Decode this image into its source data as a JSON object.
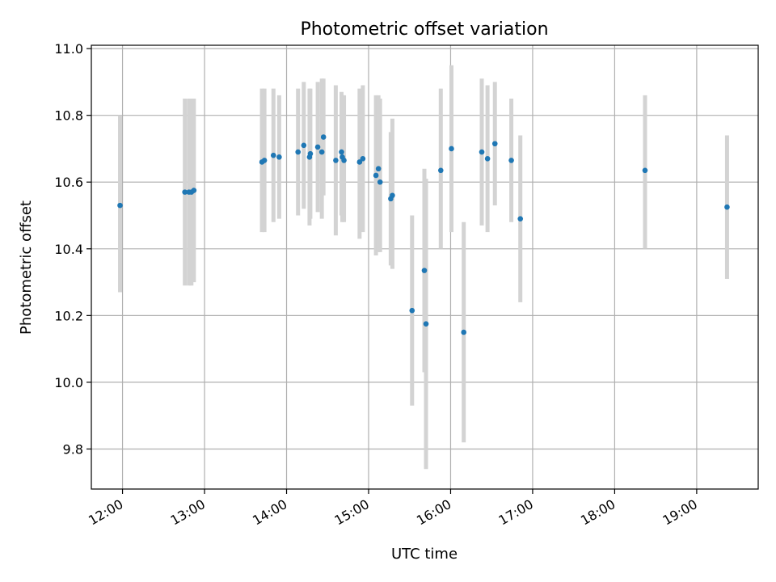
{
  "chart_data": {
    "type": "scatter",
    "title": "Photometric offset variation",
    "xlabel": "UTC time",
    "ylabel": "Photometric offset",
    "x_unit": "hours UTC",
    "xlim": [
      11.62,
      19.75
    ],
    "ylim": [
      9.68,
      11.01
    ],
    "x_ticks": [
      12,
      13,
      14,
      15,
      16,
      17,
      18,
      19
    ],
    "x_tick_labels": [
      "12:00",
      "13:00",
      "14:00",
      "15:00",
      "16:00",
      "17:00",
      "18:00",
      "19:00"
    ],
    "y_ticks": [
      9.8,
      10.0,
      10.2,
      10.4,
      10.6,
      10.8,
      11.0
    ],
    "y_tick_labels": [
      "9.8",
      "10.0",
      "10.2",
      "10.4",
      "10.6",
      "10.8",
      "11.0"
    ],
    "grid": true,
    "colors": {
      "point": "#1f77b4",
      "errorbar": "#d3d3d3"
    },
    "points": [
      {
        "x": 11.97,
        "y": 10.53,
        "ylo": 10.27,
        "yhi": 10.8
      },
      {
        "x": 12.76,
        "y": 10.57,
        "ylo": 10.29,
        "yhi": 10.85
      },
      {
        "x": 12.81,
        "y": 10.57,
        "ylo": 10.29,
        "yhi": 10.85
      },
      {
        "x": 12.84,
        "y": 10.57,
        "ylo": 10.29,
        "yhi": 10.85
      },
      {
        "x": 12.87,
        "y": 10.575,
        "ylo": 10.3,
        "yhi": 10.85
      },
      {
        "x": 13.7,
        "y": 10.66,
        "ylo": 10.45,
        "yhi": 10.88
      },
      {
        "x": 13.73,
        "y": 10.665,
        "ylo": 10.45,
        "yhi": 10.88
      },
      {
        "x": 13.84,
        "y": 10.68,
        "ylo": 10.48,
        "yhi": 10.88
      },
      {
        "x": 13.91,
        "y": 10.675,
        "ylo": 10.49,
        "yhi": 10.86
      },
      {
        "x": 14.14,
        "y": 10.69,
        "ylo": 10.5,
        "yhi": 10.88
      },
      {
        "x": 14.21,
        "y": 10.71,
        "ylo": 10.52,
        "yhi": 10.9
      },
      {
        "x": 14.28,
        "y": 10.675,
        "ylo": 10.47,
        "yhi": 10.88
      },
      {
        "x": 14.29,
        "y": 10.685,
        "ylo": 10.49,
        "yhi": 10.88
      },
      {
        "x": 14.38,
        "y": 10.705,
        "ylo": 10.51,
        "yhi": 10.9
      },
      {
        "x": 14.43,
        "y": 10.69,
        "ylo": 10.49,
        "yhi": 10.91
      },
      {
        "x": 14.45,
        "y": 10.735,
        "ylo": 10.56,
        "yhi": 10.91
      },
      {
        "x": 14.6,
        "y": 10.665,
        "ylo": 10.44,
        "yhi": 10.89
      },
      {
        "x": 14.67,
        "y": 10.69,
        "ylo": 10.5,
        "yhi": 10.87
      },
      {
        "x": 14.68,
        "y": 10.675,
        "ylo": 10.48,
        "yhi": 10.86
      },
      {
        "x": 14.7,
        "y": 10.665,
        "ylo": 10.48,
        "yhi": 10.86
      },
      {
        "x": 14.89,
        "y": 10.66,
        "ylo": 10.43,
        "yhi": 10.88
      },
      {
        "x": 14.93,
        "y": 10.67,
        "ylo": 10.45,
        "yhi": 10.89
      },
      {
        "x": 15.09,
        "y": 10.62,
        "ylo": 10.38,
        "yhi": 10.86
      },
      {
        "x": 15.12,
        "y": 10.64,
        "ylo": 10.39,
        "yhi": 10.86
      },
      {
        "x": 15.14,
        "y": 10.6,
        "ylo": 10.39,
        "yhi": 10.85
      },
      {
        "x": 15.27,
        "y": 10.55,
        "ylo": 10.35,
        "yhi": 10.75
      },
      {
        "x": 15.29,
        "y": 10.56,
        "ylo": 10.34,
        "yhi": 10.79
      },
      {
        "x": 15.53,
        "y": 10.215,
        "ylo": 9.93,
        "yhi": 10.5
      },
      {
        "x": 15.68,
        "y": 10.335,
        "ylo": 10.03,
        "yhi": 10.64
      },
      {
        "x": 15.7,
        "y": 10.175,
        "ylo": 9.74,
        "yhi": 10.61
      },
      {
        "x": 15.88,
        "y": 10.635,
        "ylo": 10.4,
        "yhi": 10.88
      },
      {
        "x": 16.01,
        "y": 10.7,
        "ylo": 10.45,
        "yhi": 10.95
      },
      {
        "x": 16.16,
        "y": 10.15,
        "ylo": 9.82,
        "yhi": 10.48
      },
      {
        "x": 16.38,
        "y": 10.69,
        "ylo": 10.47,
        "yhi": 10.91
      },
      {
        "x": 16.45,
        "y": 10.67,
        "ylo": 10.45,
        "yhi": 10.89
      },
      {
        "x": 16.54,
        "y": 10.715,
        "ylo": 10.53,
        "yhi": 10.9
      },
      {
        "x": 16.74,
        "y": 10.665,
        "ylo": 10.48,
        "yhi": 10.85
      },
      {
        "x": 16.85,
        "y": 10.49,
        "ylo": 10.24,
        "yhi": 10.74
      },
      {
        "x": 18.37,
        "y": 10.635,
        "ylo": 10.4,
        "yhi": 10.86
      },
      {
        "x": 19.37,
        "y": 10.525,
        "ylo": 10.31,
        "yhi": 10.74
      }
    ]
  }
}
